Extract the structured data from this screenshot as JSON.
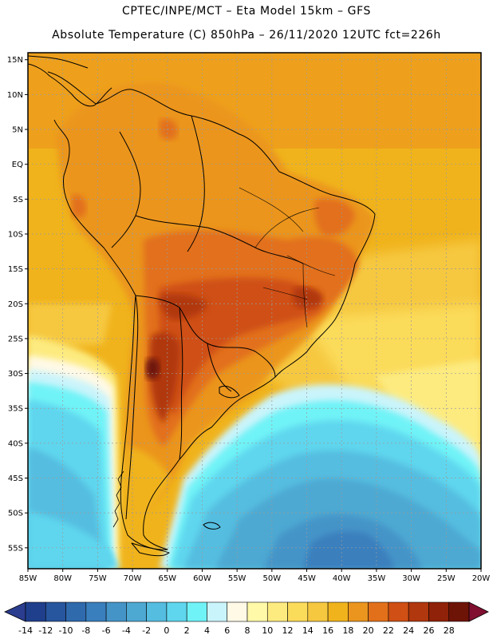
{
  "header": {
    "line1": "CPTEC/INPE/MCT –  Eta Model 15km – GFS",
    "line2": "Absolute Temperature (C) 850hPa – 26/11/2020 12UTC fct=226h"
  },
  "chart_data": {
    "type": "heatmap",
    "title": "Absolute Temperature (C) 850hPa – 26/11/2020 12UTC fct=226h",
    "source": "CPTEC/INPE/MCT –  Eta Model 15km – GFS",
    "variable": "Absolute Temperature (C)",
    "level": "850hPa",
    "lon_range": [
      -85,
      -20
    ],
    "lat_range": [
      -58,
      16
    ],
    "lat_ticks": [
      "15N",
      "10N",
      "5N",
      "EQ",
      "5S",
      "10S",
      "15S",
      "20S",
      "25S",
      "30S",
      "35S",
      "40S",
      "45S",
      "50S",
      "55S"
    ],
    "lat_values": [
      15,
      10,
      5,
      0,
      -5,
      -10,
      -15,
      -20,
      -25,
      -30,
      -35,
      -40,
      -45,
      -50,
      -55
    ],
    "lon_ticks": [
      "85W",
      "80W",
      "75W",
      "70W",
      "65W",
      "60W",
      "55W",
      "50W",
      "45W",
      "40W",
      "35W",
      "30W",
      "25W",
      "20W"
    ],
    "lon_values": [
      -85,
      -80,
      -75,
      -70,
      -65,
      -60,
      -55,
      -50,
      -45,
      -40,
      -35,
      -30,
      -25,
      -20
    ],
    "colorbar": {
      "labels": [
        "-14",
        "-12",
        "-10",
        "-8",
        "-6",
        "-4",
        "-2",
        "0",
        "2",
        "4",
        "6",
        "8",
        "10",
        "12",
        "14",
        "16",
        "18",
        "20",
        "22",
        "24",
        "26",
        "28"
      ],
      "colors": [
        "#1f3f8c",
        "#27559e",
        "#2f6aad",
        "#3a7fbd",
        "#4594c8",
        "#4ea9d2",
        "#55bde0",
        "#5fd6ee",
        "#6ff3f7",
        "#caf4fb",
        "#fff9e6",
        "#fff9a8",
        "#fdeb80",
        "#fbdb5a",
        "#f6c83f",
        "#f0b31c",
        "#eb951e",
        "#e2701a",
        "#cf4f14",
        "#b1370e",
        "#8f2208",
        "#6e1407"
      ],
      "arrow_low": "#2b3d8f",
      "arrow_high": "#800f30"
    }
  }
}
